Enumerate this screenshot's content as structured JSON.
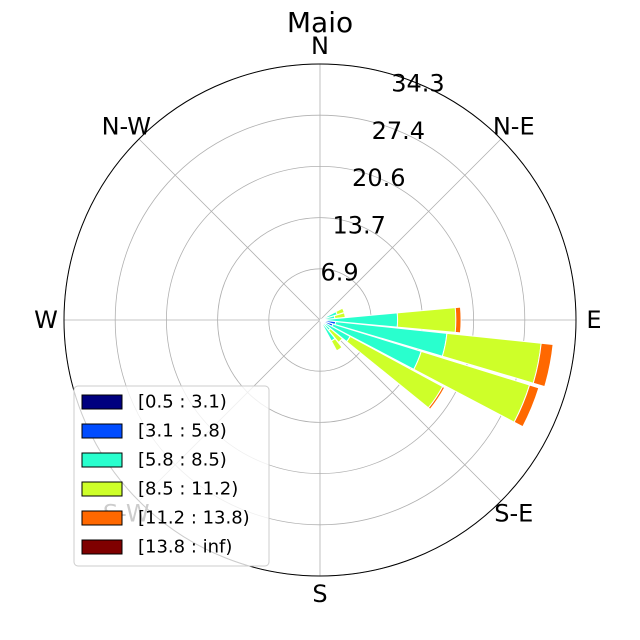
{
  "chart_data": {
    "type": "windrose",
    "title": "Maio",
    "directions": [
      "E",
      "N-E",
      "N",
      "N-W",
      "W",
      "S-W",
      "S",
      "S-E"
    ],
    "radial_ticks": [
      "6.9",
      "13.7",
      "20.6",
      "27.4",
      "34.3"
    ],
    "radial_tick_values": [
      6.86,
      13.72,
      20.58,
      27.44,
      34.3
    ],
    "rmax": 34.3,
    "legend_position": "lower-left",
    "bins": [
      {
        "name": "[0.5 : 3.1)",
        "color": "#00007f"
      },
      {
        "name": "[3.1 : 5.8)",
        "color": "#004cff"
      },
      {
        "name": "[5.8 : 8.5)",
        "color": "#29ffce"
      },
      {
        "name": "[8.5 : 11.2)",
        "color": "#ceff29"
      },
      {
        "name": "[11.2 : 13.8)",
        "color": "#ff6800"
      },
      {
        "name": "[13.8 : inf)",
        "color": "#7f0000"
      }
    ],
    "sectors": [
      {
        "angle_deg": 22.5,
        "cum": [
          0.2,
          0.9,
          2.4,
          3.4,
          3.4,
          3.4
        ]
      },
      {
        "angle_deg": 11.25,
        "cum": [
          0.2,
          0.5,
          2.0,
          3.4,
          3.4,
          3.4
        ]
      },
      {
        "angle_deg": 0,
        "cum": [
          0.2,
          0.6,
          10.4,
          18.2,
          18.9,
          18.9
        ]
      },
      {
        "angle_deg": -11.25,
        "cum": [
          0.3,
          2.1,
          17.1,
          29.8,
          31.4,
          31.4
        ]
      },
      {
        "angle_deg": -22.5,
        "cum": [
          0.3,
          1.8,
          14.2,
          29.4,
          30.7,
          30.7
        ]
      },
      {
        "angle_deg": -33.75,
        "cum": [
          0.3,
          0.9,
          4.6,
          18.7,
          19.0,
          19.0
        ]
      },
      {
        "angle_deg": -45,
        "cum": [
          0.2,
          0.4,
          1.8,
          3.9,
          3.9,
          3.9
        ]
      },
      {
        "angle_deg": -56.25,
        "cum": [
          0.2,
          0.4,
          3.2,
          4.7,
          4.7,
          4.7
        ]
      }
    ]
  }
}
